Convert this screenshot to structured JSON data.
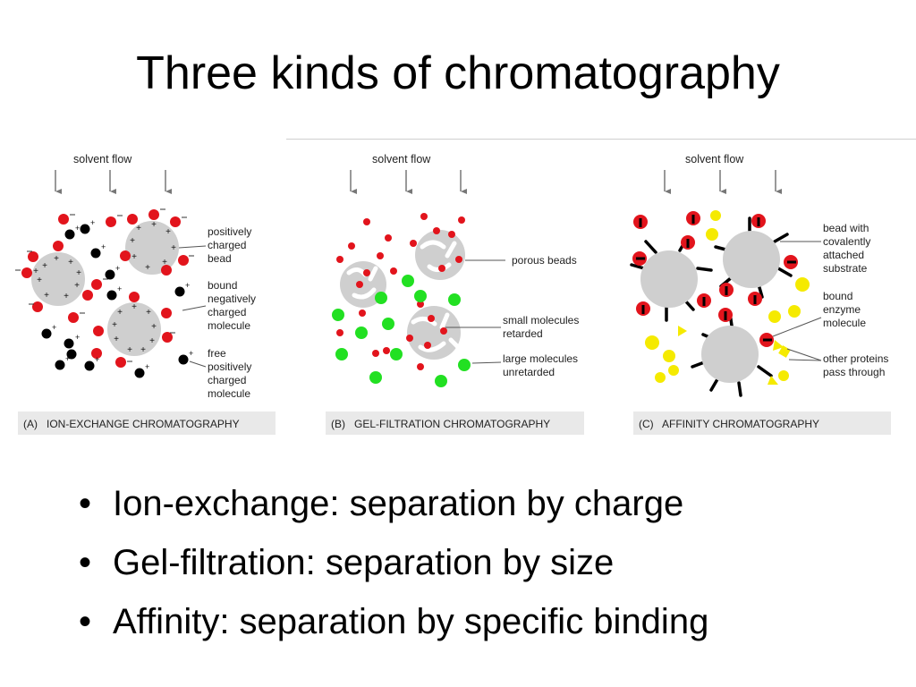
{
  "slide": {
    "title": "Three kinds of chromatography",
    "bullets": [
      "Ion-exchange: separation by charge",
      "Gel-filtration: separation by size",
      "Affinity: separation by specific binding"
    ]
  },
  "panels": {
    "a": {
      "solvent": "solvent flow",
      "caption": "(A)   ION-EXCHANGE CHROMATOGRAPHY",
      "labels": {
        "bead": [
          "positively",
          "charged",
          "bead"
        ],
        "bound": [
          "bound",
          "negatively",
          "charged",
          "molecule"
        ],
        "free": [
          "free",
          "positively",
          "charged",
          "molecule"
        ]
      }
    },
    "b": {
      "solvent": "solvent flow",
      "caption": "(B)   GEL-FILTRATION CHROMATOGRAPHY",
      "labels": {
        "porous": [
          "porous beads"
        ],
        "small": [
          "small molecules",
          "retarded"
        ],
        "large": [
          "large molecules",
          "unretarded"
        ]
      }
    },
    "c": {
      "solvent": "solvent flow",
      "caption": "(C)   AFFINITY CHROMATOGRAPHY",
      "labels": {
        "bead": [
          "bead with",
          "covalently",
          "attached",
          "substrate"
        ],
        "enzyme": [
          "bound",
          "enzyme",
          "molecule"
        ],
        "other": [
          "other proteins",
          "pass through"
        ]
      }
    }
  },
  "colors": {
    "bead_gray": "#cfcfcf",
    "red_molecule": "#e2141c",
    "green_molecule": "#22e022",
    "yellow_protein": "#f5ea00",
    "black_molecule": "#000000",
    "caption_bg": "#e9e9e9"
  }
}
